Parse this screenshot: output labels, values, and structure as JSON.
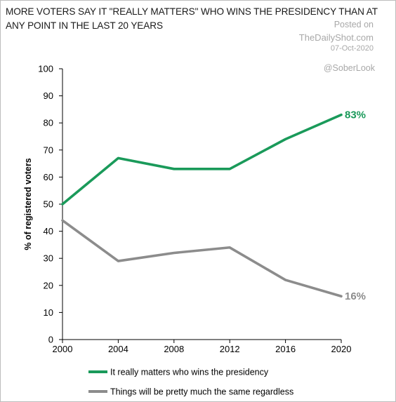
{
  "watermark": {
    "posted": "Posted on",
    "site": "TheDailyShot.com",
    "date": "07-Oct-2020",
    "handle": "@SoberLook"
  },
  "chart_data": {
    "type": "line",
    "title": "MORE VOTERS SAY IT \"REALLY MATTERS\" WHO WINS THE PRESIDENCY THAN AT ANY POINT IN THE LAST 20 YEARS",
    "ylabel": "% of registered voters",
    "xlabel": "",
    "x": [
      2000,
      2004,
      2008,
      2012,
      2016,
      2020
    ],
    "ylim": [
      0,
      100
    ],
    "yticks": [
      0,
      10,
      20,
      30,
      40,
      50,
      60,
      70,
      80,
      90,
      100
    ],
    "grid": false,
    "legend_position": "bottom",
    "series": [
      {
        "name": "It really matters who wins the presidency",
        "values": [
          50,
          67,
          63,
          63,
          74,
          83
        ],
        "color": "#1a9a5a",
        "end_label": "83%"
      },
      {
        "name": "Things will be pretty much the same regardless",
        "values": [
          44,
          29,
          32,
          34,
          22,
          16
        ],
        "color": "#8c8c8c",
        "end_label": "16%"
      }
    ]
  }
}
